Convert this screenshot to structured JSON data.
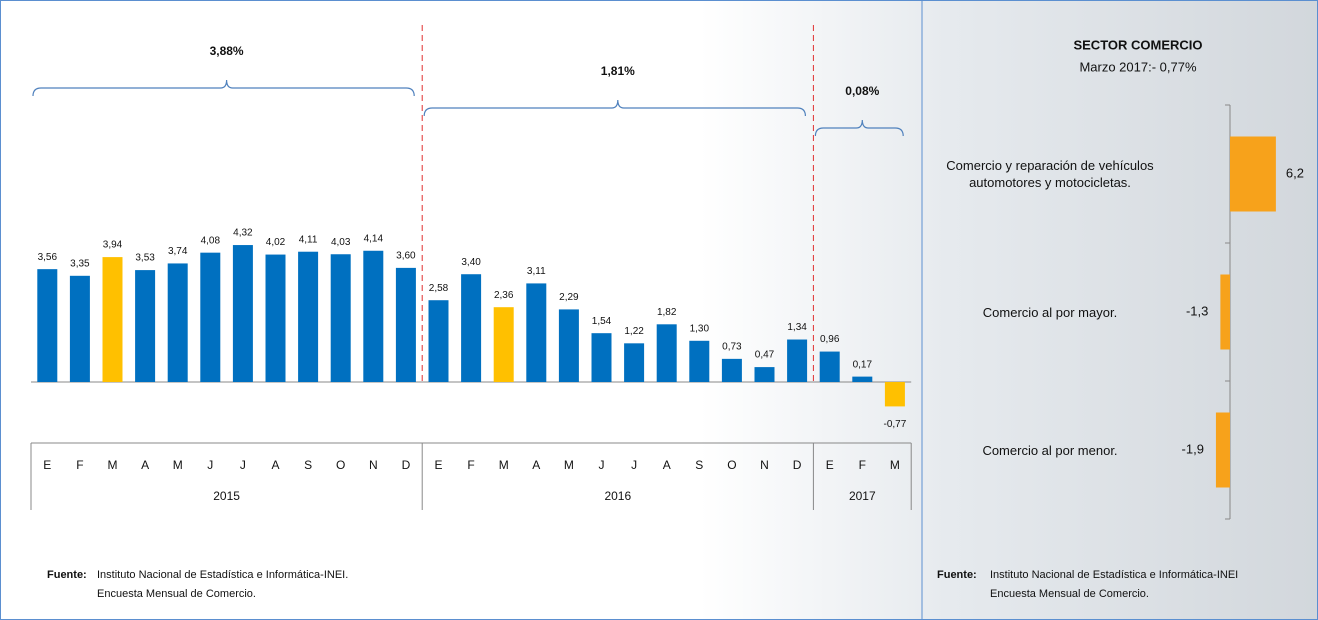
{
  "chart_data": [
    {
      "type": "bar",
      "groups": [
        {
          "name": "2015",
          "annotation": "3,88%",
          "categories": [
            "E",
            "F",
            "M",
            "A",
            "M",
            "J",
            "J",
            "A",
            "S",
            "O",
            "N",
            "D"
          ],
          "values": [
            3.56,
            3.35,
            3.94,
            3.53,
            3.74,
            4.08,
            4.32,
            4.02,
            4.11,
            4.03,
            4.14,
            3.6
          ],
          "value_labels": [
            "3,56",
            "3,35",
            "3,94",
            "3,53",
            "3,74",
            "4,08",
            "4,32",
            "4,02",
            "4,11",
            "4,03",
            "4,14",
            "3,60"
          ],
          "colors": [
            "#0070c0",
            "#0070c0",
            "#ffc000",
            "#0070c0",
            "#0070c0",
            "#0070c0",
            "#0070c0",
            "#0070c0",
            "#0070c0",
            "#0070c0",
            "#0070c0",
            "#0070c0"
          ]
        },
        {
          "name": "2016",
          "annotation": "1,81%",
          "categories": [
            "E",
            "F",
            "M",
            "A",
            "M",
            "J",
            "J",
            "A",
            "S",
            "O",
            "N",
            "D"
          ],
          "values": [
            2.58,
            3.4,
            2.36,
            3.11,
            2.29,
            1.54,
            1.22,
            1.82,
            1.3,
            0.73,
            0.47,
            1.34
          ],
          "value_labels": [
            "2,58",
            "3,40",
            "2,36",
            "3,11",
            "2,29",
            "1,54",
            "1,22",
            "1,82",
            "1,30",
            "0,73",
            "0,47",
            "1,34"
          ],
          "colors": [
            "#0070c0",
            "#0070c0",
            "#ffc000",
            "#0070c0",
            "#0070c0",
            "#0070c0",
            "#0070c0",
            "#0070c0",
            "#0070c0",
            "#0070c0",
            "#0070c0",
            "#0070c0"
          ]
        },
        {
          "name": "2017",
          "annotation": "0,08%",
          "categories": [
            "E",
            "F",
            "M"
          ],
          "values": [
            0.96,
            0.17,
            -0.77
          ],
          "value_labels": [
            "0,96",
            "0,17",
            "-0,77"
          ],
          "colors": [
            "#0070c0",
            "#0070c0",
            "#ffc000"
          ]
        }
      ],
      "source": {
        "label": "Fuente:",
        "lines": [
          "Instituto Nacional de Estadística e Informática-INEI.",
          "Encuesta Mensual de Comercio."
        ]
      }
    },
    {
      "type": "barh",
      "title": "SECTOR COMERCIO",
      "subtitle": "Marzo 2017:- 0,77%",
      "categories": [
        "Comercio y reparación de vehículos automotores y motocicletas.",
        "Comercio al por mayor.",
        "Comercio al por menor."
      ],
      "values": [
        6.2,
        -1.3,
        -1.9
      ],
      "value_labels": [
        "6,2",
        "-1,3",
        "-1,9"
      ],
      "color": "#f7a21b",
      "source": {
        "label": "Fuente:",
        "lines": [
          "Instituto Nacional de Estadística e Informática-INEI",
          "Encuesta Mensual de Comercio."
        ]
      }
    }
  ]
}
